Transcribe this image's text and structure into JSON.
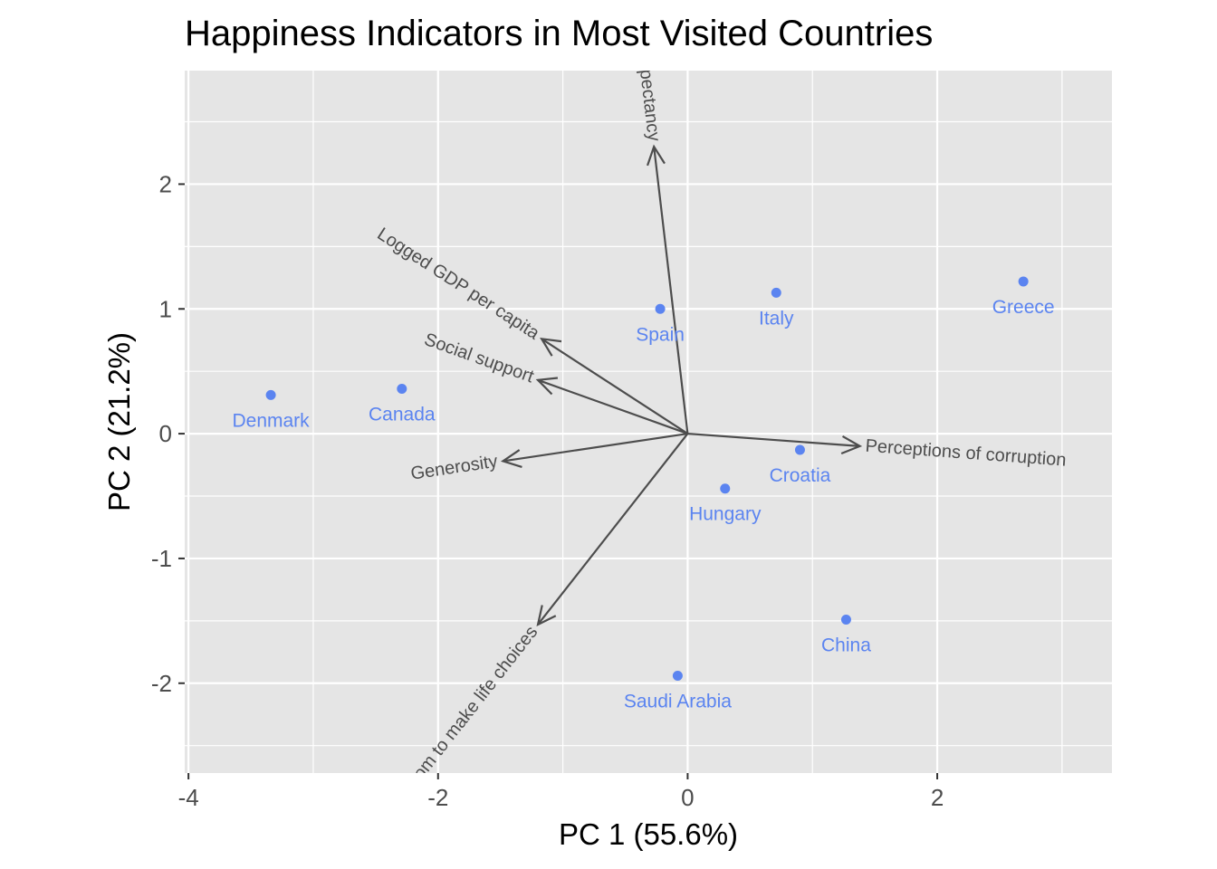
{
  "chart_data": {
    "type": "scatter",
    "subtype": "pca-biplot",
    "title": "Happiness Indicators in Most Visited Countries",
    "xlabel": "PC 1 (55.6%)",
    "ylabel": "PC 2 (21.2%)",
    "xlim": [
      -4.03,
      3.4
    ],
    "ylim": [
      -2.72,
      2.91
    ],
    "x_ticks": [
      -4,
      -2,
      0,
      2
    ],
    "x_tick_labels": [
      "-4",
      "-2",
      "0",
      "2"
    ],
    "y_ticks": [
      -2,
      -1,
      0,
      1,
      2
    ],
    "y_tick_labels": [
      "-2",
      "-1",
      "0",
      "1",
      "2"
    ],
    "grid": true,
    "point_color": "#5b84f0",
    "arrow_color": "#4d4d4d",
    "panel_color": "#e5e5e5",
    "points": [
      {
        "label": "Denmark",
        "x": -3.34,
        "y": 0.31
      },
      {
        "label": "Canada",
        "x": -2.29,
        "y": 0.36
      },
      {
        "label": "Spain",
        "x": -0.22,
        "y": 1.0
      },
      {
        "label": "Italy",
        "x": 0.71,
        "y": 1.13
      },
      {
        "label": "Greece",
        "x": 2.69,
        "y": 1.22
      },
      {
        "label": "Croatia",
        "x": 0.9,
        "y": -0.13
      },
      {
        "label": "Hungary",
        "x": 0.3,
        "y": -0.44
      },
      {
        "label": "China",
        "x": 1.27,
        "y": -1.49
      },
      {
        "label": "Saudi Arabia",
        "x": -0.08,
        "y": -1.94
      }
    ],
    "loadings": [
      {
        "label": "Healthy life expectancy",
        "x": -0.27,
        "y": 2.3
      },
      {
        "label": "Logged GDP per capita",
        "x": -1.17,
        "y": 0.76
      },
      {
        "label": "Social support",
        "x": -1.2,
        "y": 0.43
      },
      {
        "label": "Generosity",
        "x": -1.48,
        "y": -0.22
      },
      {
        "label": "Perceptions of corruption",
        "x": 1.38,
        "y": -0.1
      },
      {
        "label": "Freedom to make life choices",
        "x": -1.2,
        "y": -1.53
      }
    ]
  }
}
